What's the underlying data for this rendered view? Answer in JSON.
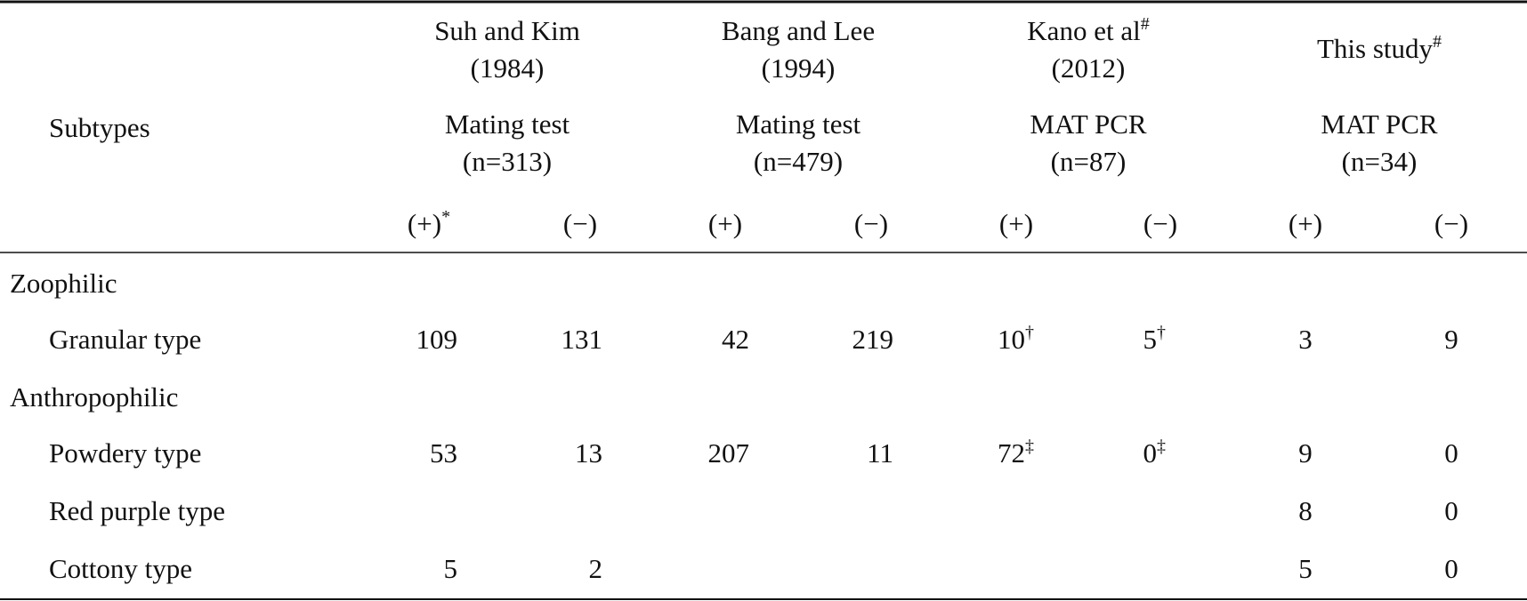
{
  "table": {
    "stub": "Subtypes",
    "groups": [
      {
        "name": "Suh and Kim",
        "year": "(1984)",
        "method": "Mating test",
        "n": "(n=313)"
      },
      {
        "name": "Bang and Lee",
        "year": "(1994)",
        "method": "Mating test",
        "n": "(n=479)"
      },
      {
        "name": "Kano et al",
        "name_sup": "#",
        "year": "(2012)",
        "method": "MAT PCR",
        "n": "(n=87)"
      },
      {
        "name": "This study",
        "name_sup": "#",
        "method": "MAT PCR",
        "n": "(n=34)"
      }
    ],
    "sub_headers": [
      {
        "text": "(+)",
        "sup": "*"
      },
      "(−)",
      "(+)",
      "(−)",
      "(+)",
      "(−)",
      "(+)",
      "(−)"
    ],
    "sections": [
      {
        "label": "Zoophilic",
        "rows": [
          {
            "label": "Granular type",
            "cells": [
              "109",
              "131",
              "42",
              "219",
              {
                "text": "10",
                "sup": "†"
              },
              {
                "text": "5",
                "sup": "†"
              },
              "3",
              "9"
            ]
          }
        ]
      },
      {
        "label": "Anthropophilic",
        "rows": [
          {
            "label": "Powdery type",
            "cells": [
              "53",
              "13",
              "207",
              "11",
              {
                "text": "72",
                "sup": "‡"
              },
              {
                "text": "0",
                "sup": "‡"
              },
              "9",
              "0"
            ]
          },
          {
            "label": "Red purple type",
            "cells": [
              null,
              null,
              null,
              null,
              null,
              null,
              "8",
              "0"
            ]
          },
          {
            "label": "Cottony type",
            "cells": [
              "5",
              "2",
              null,
              null,
              null,
              null,
              "5",
              "0"
            ]
          }
        ]
      }
    ]
  }
}
